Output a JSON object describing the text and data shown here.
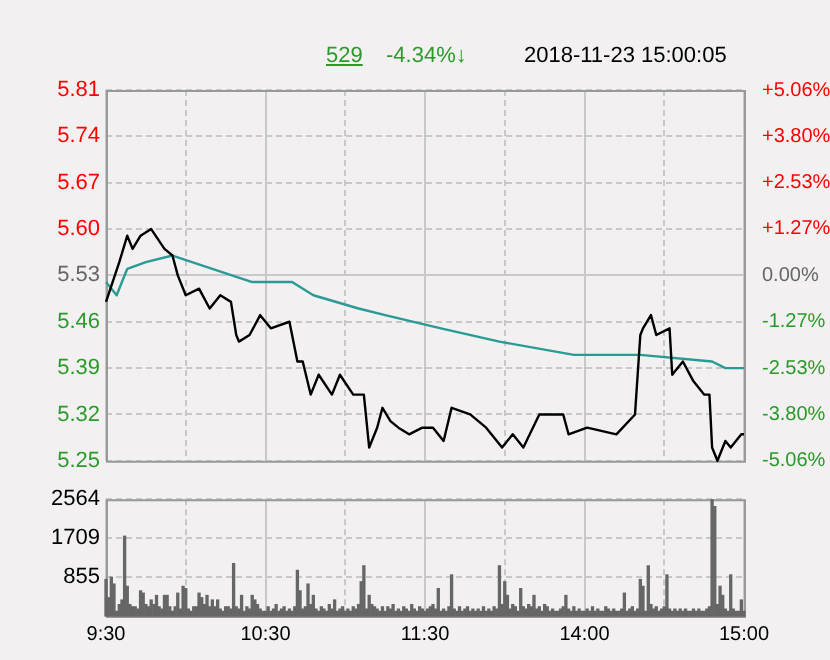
{
  "chart_data": [
    {
      "type": "line",
      "annotations": [
        "529",
        "-4.34%↓",
        "2018-11-23 15:00:05"
      ],
      "series": [
        {
          "color": "#000000",
          "values": [
            5.49,
            null,
            null,
            null,
            null,
            5.55,
            null,
            null,
            5.59,
            null,
            5.57,
            null,
            null,
            5.59,
            null,
            null,
            null,
            5.6,
            null,
            null,
            null,
            null,
            5.57,
            null,
            null,
            5.56,
            null,
            5.53,
            null,
            null,
            5.5,
            null,
            null,
            null,
            null,
            5.51,
            null,
            null,
            null,
            5.48,
            null,
            null,
            null,
            5.5,
            null,
            null,
            null,
            5.49,
            null,
            5.44,
            5.43,
            null,
            null,
            null,
            5.44,
            null,
            null,
            null,
            5.47,
            null,
            null,
            null,
            5.45,
            null,
            null,
            null,
            null,
            null,
            null,
            5.46,
            null,
            null,
            5.4,
            null,
            5.4,
            null,
            null,
            5.35,
            null,
            null,
            5.38,
            null,
            null,
            null,
            null,
            5.35,
            null,
            null,
            5.38,
            null,
            null,
            null,
            null,
            5.35,
            null,
            null,
            null,
            5.35,
            null,
            5.27,
            null,
            null,
            5.3,
            null,
            5.33,
            null,
            null,
            5.31,
            null,
            null,
            5.3,
            null,
            null,
            null,
            5.29,
            null,
            null,
            null,
            null,
            5.3,
            null,
            null,
            null,
            5.3,
            null,
            null,
            null,
            5.28,
            null,
            null,
            5.33,
            null,
            null,
            null,
            null,
            null,
            null,
            5.32,
            null,
            null,
            null,
            null,
            null,
            5.3,
            null,
            null,
            null,
            null,
            null,
            5.27,
            null,
            null,
            null,
            5.29,
            null,
            null,
            null,
            5.27,
            null,
            null,
            null,
            null,
            null,
            5.32,
            null,
            null,
            null,
            null,
            null,
            null,
            null,
            null,
            5.32,
            null,
            5.29,
            null,
            null,
            null,
            null,
            null,
            null,
            5.3,
            null,
            null,
            null,
            null,
            null,
            null,
            null,
            null,
            null,
            null,
            5.29,
            null,
            null,
            null,
            null,
            null,
            null,
            5.32,
            null,
            5.44,
            5.45,
            null,
            null,
            5.47,
            null,
            5.44,
            null,
            null,
            null,
            null,
            5.45,
            5.38,
            null,
            null,
            null,
            5.4,
            null,
            null,
            null,
            5.37,
            null,
            null,
            null,
            5.35,
            null,
            5.35,
            5.27,
            null,
            5.25,
            null,
            null,
            5.28,
            null,
            5.27,
            null,
            null,
            null,
            5.29,
            5.29
          ]
        },
        {
          "color": "#2a9a94",
          "values": [
            5.52,
            null,
            null,
            null,
            5.5,
            null,
            null,
            null,
            5.54,
            null,
            null,
            null,
            null,
            null,
            null,
            5.55,
            null,
            null,
            null,
            null,
            null,
            null,
            null,
            null,
            null,
            5.56,
            null,
            null,
            null,
            null,
            null,
            null,
            null,
            null,
            null,
            null,
            null,
            null,
            null,
            null,
            5.54,
            null,
            null,
            null,
            null,
            null,
            null,
            null,
            null,
            null,
            null,
            null,
            null,
            null,
            null,
            5.52,
            null,
            null,
            null,
            null,
            null,
            null,
            null,
            null,
            null,
            null,
            null,
            null,
            null,
            null,
            5.52,
            null,
            null,
            null,
            null,
            null,
            null,
            null,
            5.5,
            null,
            null,
            null,
            null,
            null,
            null,
            null,
            null,
            null,
            null,
            null,
            null,
            null,
            null,
            null,
            null,
            5.48,
            null,
            null,
            null,
            null,
            null,
            null,
            null,
            null,
            null,
            5.47,
            null,
            null,
            null,
            null,
            null,
            null,
            null,
            null,
            null,
            null,
            null,
            null,
            null,
            null,
            null,
            null,
            null,
            null,
            null,
            null,
            5.45,
            null,
            null,
            null,
            null,
            null,
            null,
            null,
            null,
            null,
            null,
            null,
            null,
            null,
            null,
            null,
            null,
            null,
            null,
            null,
            null,
            null,
            5.43,
            null,
            null,
            null,
            null,
            null,
            null,
            null,
            null,
            null,
            null,
            null,
            null,
            null,
            null,
            null,
            null,
            null,
            null,
            null,
            null,
            null,
            null,
            null,
            null,
            null,
            null,
            null,
            5.41,
            null,
            null,
            null,
            null,
            null,
            null,
            null,
            null,
            null,
            null,
            null,
            null,
            null,
            null,
            null,
            null,
            null,
            null,
            null,
            null,
            null,
            null,
            null,
            null,
            5.41,
            null,
            null,
            null,
            null,
            null,
            null,
            null,
            null,
            null,
            null,
            null,
            null,
            null,
            null,
            null,
            null,
            null,
            null,
            null,
            null,
            null,
            null,
            null,
            null,
            null,
            null,
            5.4,
            null,
            null,
            null,
            null,
            5.39,
            null,
            null,
            null,
            null,
            null,
            null,
            5.39
          ]
        }
      ],
      "categories": [
        null,
        null,
        null,
        null,
        null,
        null,
        null,
        null,
        null,
        null,
        null,
        null,
        null,
        null,
        null,
        null,
        null,
        null,
        null,
        null,
        null,
        null,
        null,
        null,
        null,
        null,
        null,
        null,
        null,
        null,
        null,
        null,
        null,
        null,
        null,
        null,
        null,
        null,
        null,
        null,
        null,
        null,
        null,
        null,
        null,
        null,
        null,
        null,
        null,
        null,
        null,
        null,
        null,
        null,
        null,
        null,
        null,
        null,
        null,
        null,
        null,
        null,
        null,
        null,
        null,
        null,
        null,
        null,
        null,
        null,
        null,
        null,
        null,
        null,
        null,
        null,
        null,
        null,
        null,
        null,
        null,
        null,
        null,
        null,
        null,
        null,
        null,
        null,
        null,
        null,
        null,
        null,
        null,
        null,
        null,
        null,
        null,
        null,
        null,
        null,
        null,
        null,
        null,
        null,
        null,
        null,
        null,
        null,
        null,
        null,
        null,
        null,
        null,
        null,
        null,
        null,
        null,
        null,
        null,
        null,
        null,
        null,
        null,
        null,
        null,
        null,
        null,
        null,
        null,
        null,
        null,
        null,
        null,
        null,
        null,
        null,
        null,
        null,
        null,
        null,
        null,
        null,
        null,
        null,
        null,
        null,
        null,
        null,
        null,
        null,
        null,
        null,
        null,
        null,
        null,
        null,
        null,
        null,
        null,
        null,
        null,
        null,
        null,
        null,
        null,
        null,
        null,
        null,
        null,
        null,
        null,
        null,
        null,
        null,
        null,
        null,
        null,
        null,
        null,
        null,
        null,
        null,
        null,
        null,
        null,
        null,
        null,
        null,
        null,
        null,
        null,
        null,
        null,
        null,
        null,
        null,
        null,
        null,
        null,
        null,
        null,
        null,
        null,
        null,
        null,
        null,
        null,
        null,
        null,
        null,
        null,
        null,
        null,
        null,
        null,
        null,
        null,
        null,
        null,
        null,
        null,
        null,
        null,
        null,
        null,
        null,
        null,
        null,
        null,
        null,
        null,
        null,
        null,
        null,
        null,
        null,
        null,
        null,
        null,
        null,
        null
      ],
      "ylim": [
        5.25,
        5.81
      ],
      "yticks": [
        5.25,
        5.32,
        5.39,
        5.46,
        5.53,
        {
          "value": 5.6,
          "label": "5.60"
        },
        5.67,
        5.74,
        5.81
      ],
      "y2lim": [
        -5.06,
        5.06
      ],
      "y2ticks": [
        {
          "value": -5.06,
          "label": "-5.06%"
        },
        {
          "value": -3.8,
          "label": "-3.80%"
        },
        {
          "value": -2.53,
          "label": "-2.53%"
        },
        {
          "value": -1.27,
          "label": "-1.27%"
        },
        {
          "value": 0,
          "label": "0.00%"
        },
        {
          "value": 1.27,
          "label": "+1.27%"
        },
        {
          "value": 2.53,
          "label": "+2.53%"
        },
        {
          "value": 3.8,
          "label": "+3.80%"
        },
        {
          "value": 5.06,
          "label": "+5.06%"
        }
      ],
      "grid": true,
      "tick_labels": "y"
    },
    {
      "type": "bar",
      "color": "#666666",
      "categories": [
        "9:30",
        null,
        null,
        null,
        null,
        null,
        null,
        null,
        null,
        null,
        null,
        null,
        null,
        null,
        null,
        null,
        null,
        null,
        null,
        null,
        null,
        null,
        null,
        null,
        null,
        null,
        null,
        null,
        null,
        null,
        null,
        null,
        null,
        null,
        null,
        null,
        null,
        null,
        null,
        null,
        null,
        null,
        null,
        null,
        null,
        null,
        null,
        null,
        null,
        null,
        null,
        null,
        null,
        null,
        null,
        null,
        null,
        null,
        null,
        null,
        "10:30",
        null,
        null,
        null,
        null,
        null,
        null,
        null,
        null,
        null,
        null,
        null,
        null,
        null,
        null,
        null,
        null,
        null,
        null,
        null,
        null,
        null,
        null,
        null,
        null,
        null,
        null,
        null,
        null,
        null,
        null,
        null,
        null,
        null,
        null,
        null,
        null,
        null,
        null,
        null,
        null,
        null,
        null,
        null,
        null,
        null,
        null,
        null,
        null,
        null,
        null,
        null,
        null,
        null,
        null,
        null,
        null,
        null,
        null,
        null,
        "11:30",
        null,
        null,
        null,
        null,
        null,
        null,
        null,
        null,
        null,
        null,
        null,
        null,
        null,
        null,
        null,
        null,
        null,
        null,
        null,
        null,
        null,
        null,
        null,
        null,
        null,
        null,
        null,
        null,
        null,
        null,
        null,
        null,
        null,
        null,
        null,
        null,
        null,
        null,
        null,
        null,
        null,
        null,
        null,
        null,
        null,
        null,
        null,
        null,
        null,
        null,
        null,
        null,
        null,
        null,
        null,
        null,
        null,
        null,
        null,
        "14:00",
        null,
        null,
        null,
        null,
        null,
        null,
        null,
        null,
        null,
        null,
        null,
        null,
        null,
        null,
        null,
        null,
        null,
        null,
        null,
        null,
        null,
        null,
        null,
        null,
        null,
        null,
        null,
        null,
        null,
        null,
        null,
        null,
        null,
        null,
        null,
        null,
        null,
        null,
        null,
        null,
        null,
        null,
        null,
        null,
        null,
        null,
        null,
        null,
        null,
        null,
        null,
        null,
        null,
        null,
        null,
        null,
        null,
        null,
        null,
        "15:00"
      ],
      "values": [
        800,
        400,
        850,
        700,
        100,
        250,
        350,
        1750,
        650,
        250,
        200,
        200,
        150,
        550,
        500,
        250,
        200,
        350,
        250,
        450,
        200,
        150,
        450,
        450,
        200,
        100,
        200,
        500,
        150,
        650,
        600,
        150,
        100,
        200,
        200,
        500,
        400,
        250,
        450,
        200,
        350,
        200,
        350,
        150,
        100,
        200,
        200,
        150,
        1150,
        200,
        150,
        450,
        100,
        200,
        150,
        450,
        350,
        250,
        150,
        100,
        100,
        200,
        100,
        150,
        250,
        100,
        150,
        200,
        100,
        150,
        100,
        200,
        1000,
        550,
        150,
        200,
        700,
        250,
        450,
        150,
        100,
        200,
        150,
        100,
        250,
        150,
        350,
        100,
        150,
        200,
        100,
        150,
        100,
        200,
        150,
        250,
        750,
        1100,
        150,
        450,
        250,
        200,
        150,
        100,
        200,
        100,
        200,
        150,
        250,
        100,
        150,
        100,
        200,
        150,
        100,
        250,
        150,
        100,
        200,
        150,
        100,
        150,
        200,
        250,
        150,
        600,
        100,
        150,
        100,
        200,
        900,
        150,
        100,
        200,
        100,
        150,
        200,
        100,
        150,
        100,
        150,
        100,
        200,
        100,
        150,
        100,
        200,
        150,
        1100,
        250,
        750,
        450,
        150,
        250,
        200,
        100,
        600,
        200,
        150,
        250,
        200,
        450,
        150,
        200,
        100,
        250,
        200,
        100,
        150,
        100,
        100,
        150,
        200,
        450,
        150,
        100,
        200,
        100,
        150,
        100,
        100,
        150,
        100,
        200,
        100,
        150,
        100,
        100,
        200,
        150,
        100,
        150,
        100,
        100,
        150,
        500,
        100,
        150,
        200,
        100,
        150,
        800,
        650,
        100,
        1100,
        250,
        150,
        200,
        100,
        150,
        200,
        900,
        150,
        100,
        150,
        100,
        150,
        100,
        150,
        100,
        100,
        150,
        100,
        150,
        100,
        100,
        150,
        200,
        2550,
        2400,
        250,
        650,
        450,
        150,
        100,
        900,
        150,
        100,
        100,
        350,
        100
      ],
      "ylim": [
        0,
        2564
      ],
      "yticks": [
        855,
        1709,
        2564
      ],
      "grid": true
    }
  ]
}
